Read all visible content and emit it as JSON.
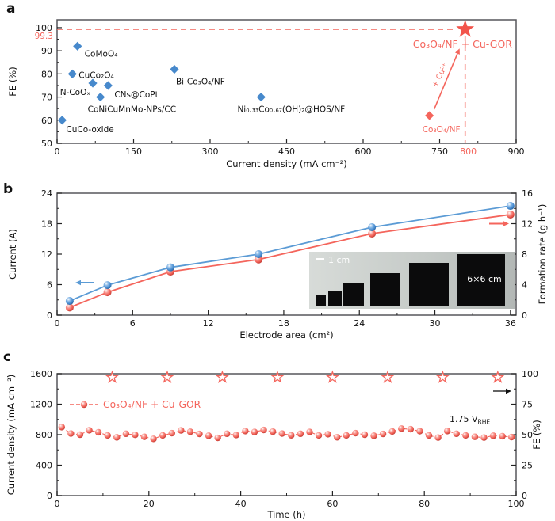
{
  "figure": {
    "panels": [
      {
        "letter": "a"
      },
      {
        "letter": "b"
      },
      {
        "letter": "c"
      }
    ]
  },
  "colors": {
    "blue_marker": "#4789cc",
    "blue_line": "#5b9bd5",
    "salmon": "#f4655c",
    "star_red": "#f2544b",
    "frame": "#57575b",
    "text": "#111111",
    "white": "#ffffff"
  },
  "chart_data": [
    {
      "panel": "a",
      "type": "scatter",
      "xlabel": "Current density (mA cm⁻²)",
      "ylabel": "FE (%)",
      "xlim": [
        0,
        900
      ],
      "ylim": [
        50,
        103.4
      ],
      "xticks": [
        0,
        150,
        300,
        450,
        600,
        750,
        900
      ],
      "yticks": [
        50,
        60,
        70,
        80,
        90,
        100
      ],
      "grid": false,
      "reference_points": [
        {
          "label": "CuCo-oxide",
          "x": 10,
          "y": 60
        },
        {
          "label": "CuCo₂O₄",
          "x": 30,
          "y": 80
        },
        {
          "label": "CoMoO₄",
          "x": 40,
          "y": 92
        },
        {
          "label": "N-CoOₓ",
          "x": 70,
          "y": 76
        },
        {
          "label": "CNs@CoPt",
          "x": 100,
          "y": 75
        },
        {
          "label": "CoNiCuMnMo-NPs/CC",
          "x": 85,
          "y": 70
        },
        {
          "label": "Bi-Co₃O₄/NF",
          "x": 230,
          "y": 82
        },
        {
          "label": "Ni₀.₃₃Co₀.₆₇(OH)₂@HOS/NF",
          "x": 400,
          "y": 70
        }
      ],
      "highlight": {
        "star": {
          "label": "Co₃O₄/NF + Cu-GOR",
          "x": 800,
          "y": 99.3
        },
        "diamond": {
          "label": "Co₃O₄/NF",
          "x": 730,
          "y": 62
        },
        "arrow_label": "+ Cu²⁺",
        "dash_y_label": "99.3",
        "dash_x_label": "800"
      }
    },
    {
      "panel": "b",
      "type": "line",
      "xlabel": "Electrode area (cm²)",
      "ylabel_left": "Current (A)",
      "ylabel_right": "Formation rate (g h⁻¹)",
      "xlim": [
        0,
        36
      ],
      "xticks": [
        0,
        6,
        12,
        18,
        24,
        30,
        36
      ],
      "ylim_left": [
        0,
        24
      ],
      "yticks_left": [
        0,
        6,
        12,
        18,
        24
      ],
      "ylim_right": [
        0,
        16
      ],
      "yticks_right": [
        0,
        4,
        8,
        12,
        16
      ],
      "x": [
        1,
        4,
        9,
        16,
        25,
        36
      ],
      "series": [
        {
          "name": "Current",
          "axis": "left",
          "color": "#5b9bd5",
          "values": [
            2.8,
            5.9,
            9.4,
            12.0,
            17.3,
            21.5
          ]
        },
        {
          "name": "Formation rate",
          "axis": "right",
          "color": "#f4655c",
          "values": [
            1.0,
            3.0,
            5.7,
            7.3,
            10.7,
            13.2
          ]
        }
      ],
      "inset": {
        "scale_bar_label": "1 cm",
        "electrode_label": "6×6 cm",
        "electrode_count": 6
      }
    },
    {
      "panel": "c",
      "type": "line",
      "xlabel": "Time (h)",
      "ylabel_left": "Current density (mA cm⁻²)",
      "ylabel_right": "FE (%)",
      "xlim": [
        0,
        100
      ],
      "xticks": [
        0,
        20,
        40,
        60,
        80,
        100
      ],
      "ylim_left": [
        0,
        1600
      ],
      "yticks_left": [
        0,
        400,
        800,
        1200,
        1600
      ],
      "ylim_right": [
        0,
        100
      ],
      "yticks_right": [
        0,
        25,
        50,
        75,
        100
      ],
      "legend": {
        "label": "Co₃O₄/NF + Cu-GOR"
      },
      "annotation": {
        "text": "1.75 V",
        "sub": "RHE"
      },
      "series": [
        {
          "name": "Current density",
          "axis": "left",
          "marker": "sphere",
          "color": "#f4655c",
          "x": [
            1,
            3,
            5,
            7,
            9,
            11,
            13,
            15,
            17,
            19,
            21,
            23,
            25,
            27,
            29,
            31,
            33,
            35,
            37,
            39,
            41,
            43,
            45,
            47,
            49,
            51,
            53,
            55,
            57,
            59,
            61,
            63,
            65,
            67,
            69,
            71,
            73,
            75,
            77,
            79,
            81,
            83,
            85,
            87,
            89,
            91,
            93,
            95,
            97,
            99
          ],
          "values": [
            900,
            815,
            800,
            858,
            832,
            790,
            765,
            812,
            798,
            772,
            745,
            790,
            820,
            856,
            838,
            810,
            786,
            758,
            812,
            795,
            848,
            835,
            862,
            840,
            815,
            792,
            812,
            836,
            790,
            806,
            766,
            790,
            820,
            800,
            786,
            810,
            842,
            880,
            872,
            846,
            790,
            762,
            848,
            812,
            790,
            772,
            762,
            786,
            780,
            768
          ]
        },
        {
          "name": "FE",
          "axis": "right",
          "marker": "open-star",
          "color": "#f4655c",
          "x": [
            12,
            24,
            36,
            48,
            60,
            72,
            84,
            96
          ],
          "values": [
            97,
            97,
            97,
            97,
            97,
            97,
            97,
            97
          ]
        }
      ]
    }
  ]
}
